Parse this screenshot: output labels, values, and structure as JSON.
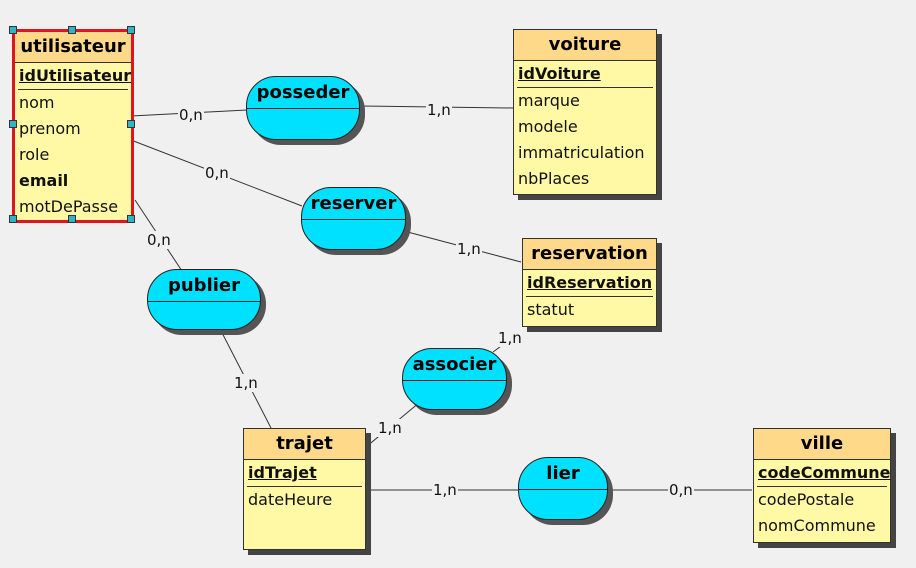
{
  "entities": {
    "utilisateur": {
      "name": "utilisateur",
      "attributes": [
        {
          "text": "idUtilisateur",
          "style": "key"
        },
        {
          "text": "nom",
          "style": ""
        },
        {
          "text": "prenom",
          "style": ""
        },
        {
          "text": "role",
          "style": ""
        },
        {
          "text": "email",
          "style": "bold"
        },
        {
          "text": "motDePasse",
          "style": ""
        }
      ]
    },
    "voiture": {
      "name": "voiture",
      "attributes": [
        {
          "text": "idVoiture",
          "style": "key"
        },
        {
          "text": "marque",
          "style": ""
        },
        {
          "text": "modele",
          "style": ""
        },
        {
          "text": "immatriculation",
          "style": ""
        },
        {
          "text": "nbPlaces",
          "style": ""
        }
      ]
    },
    "reservation": {
      "name": "reservation",
      "attributes": [
        {
          "text": "idReservation",
          "style": "key"
        },
        {
          "text": "statut",
          "style": ""
        }
      ]
    },
    "trajet": {
      "name": "trajet",
      "attributes": [
        {
          "text": "idTrajet",
          "style": "key"
        },
        {
          "text": "dateHeure",
          "style": ""
        }
      ]
    },
    "ville": {
      "name": "ville",
      "attributes": [
        {
          "text": "codeCommune",
          "style": "key"
        },
        {
          "text": "codePostale",
          "style": ""
        },
        {
          "text": "nomCommune",
          "style": ""
        }
      ]
    }
  },
  "associations": {
    "posseder": "posseder",
    "reserver": "reserver",
    "publier": "publier",
    "associer": "associer",
    "lier": "lier"
  },
  "cardinalities": {
    "utilisateur_posseder": "0,n",
    "voiture_posseder": "1,n",
    "utilisateur_reserver": "0,n",
    "reservation_reserver": "1,n",
    "utilisateur_publier": "0,n",
    "trajet_publier": "1,n",
    "reservation_associer": "1,n",
    "trajet_associer": "1,n",
    "trajet_lier": "1,n",
    "ville_lier": "0,n"
  },
  "colors": {
    "entity_header": "#ffd98a",
    "entity_body": "#fff9a6",
    "association": "#00e0ff",
    "selection": "#e0141e"
  }
}
